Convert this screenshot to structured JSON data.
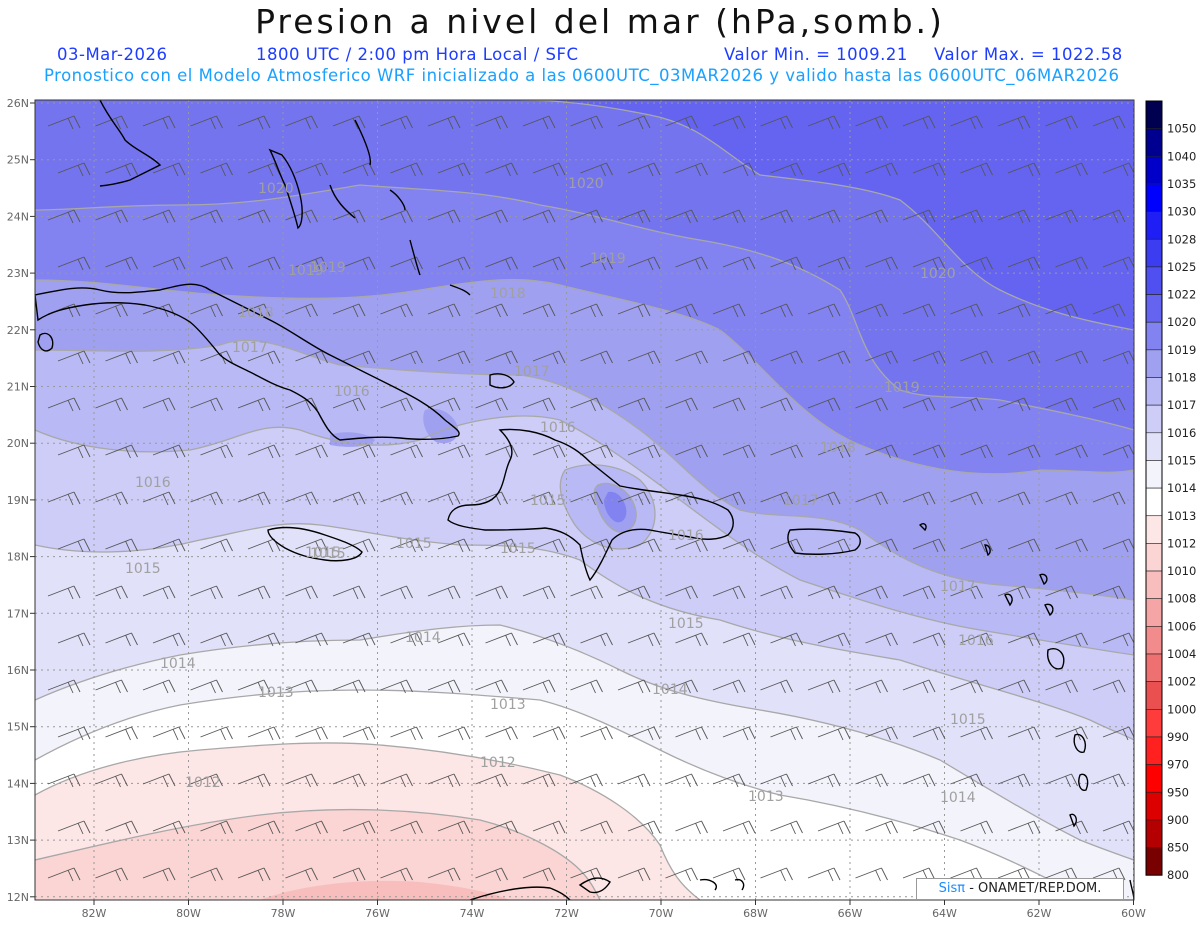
{
  "header": {
    "title": "Presion a nivel del mar (hPa,somb.)",
    "date": "03-Mar-2026",
    "time": "1800 UTC / 2:00 pm Hora Local / SFC",
    "min_value": "Valor Min. = 1009.21",
    "max_value": "Valor Max. = 1022.58",
    "forecast": "Pronostico con el Modelo Atmosferico WRF inicializado a las 0600UTC_03MAR2026 y valido hasta las  0600UTC_06MAR2026"
  },
  "map": {
    "lat_labels": [
      "26N",
      "25N",
      "24N",
      "23N",
      "22N",
      "21N",
      "20N",
      "19N",
      "18N",
      "17N",
      "16N",
      "15N",
      "14N",
      "13N",
      "12N"
    ],
    "lon_labels": [
      "82W",
      "80W",
      "78W",
      "76W",
      "74W",
      "72W",
      "70W",
      "68W",
      "66W",
      "64W",
      "62W",
      "60W"
    ],
    "contour_labels": [
      {
        "text": "1020"
      },
      {
        "text": "1020"
      },
      {
        "text": "1020"
      },
      {
        "text": "1019"
      },
      {
        "text": "1019"
      },
      {
        "text": "1019"
      },
      {
        "text": "1019"
      },
      {
        "text": "1018"
      },
      {
        "text": "1018"
      },
      {
        "text": "1018"
      },
      {
        "text": "1017"
      },
      {
        "text": "1017"
      },
      {
        "text": "1017"
      },
      {
        "text": "1017"
      },
      {
        "text": "1016"
      },
      {
        "text": "1016"
      },
      {
        "text": "1016"
      },
      {
        "text": "1016"
      },
      {
        "text": "1016"
      },
      {
        "text": "1015"
      },
      {
        "text": "1015"
      },
      {
        "text": "1015"
      },
      {
        "text": "1015"
      },
      {
        "text": "1015"
      },
      {
        "text": "1015"
      },
      {
        "text": "1015"
      },
      {
        "text": "1015"
      },
      {
        "text": "1014"
      },
      {
        "text": "1014"
      },
      {
        "text": "1014"
      },
      {
        "text": "1014"
      },
      {
        "text": "1013"
      },
      {
        "text": "1013"
      },
      {
        "text": "1013"
      },
      {
        "text": "1012"
      },
      {
        "text": "1012"
      }
    ]
  },
  "legend": {
    "entries": [
      {
        "label": "1050",
        "color": "#000050"
      },
      {
        "label": "1040",
        "color": "#000090"
      },
      {
        "label": "1035",
        "color": "#0000c8"
      },
      {
        "label": "1030",
        "color": "#0000ff"
      },
      {
        "label": "1028",
        "color": "#1e1ef5"
      },
      {
        "label": "1025",
        "color": "#3c3cf0"
      },
      {
        "label": "1022",
        "color": "#5050f0"
      },
      {
        "label": "1020",
        "color": "#6464f0"
      },
      {
        "label": "1019",
        "color": "#8282f0"
      },
      {
        "label": "1018",
        "color": "#a0a0f0"
      },
      {
        "label": "1017",
        "color": "#b9b9f5"
      },
      {
        "label": "1016",
        "color": "#cdcdf8"
      },
      {
        "label": "1015",
        "color": "#e1e1fa"
      },
      {
        "label": "1014",
        "color": "#f3f3fc"
      },
      {
        "label": "1013",
        "color": "#ffffff"
      },
      {
        "label": "1012",
        "color": "#fde6e6"
      },
      {
        "label": "1010",
        "color": "#fbd4d4"
      },
      {
        "label": "1008",
        "color": "#f8bebe"
      },
      {
        "label": "1006",
        "color": "#f5a5a5"
      },
      {
        "label": "1004",
        "color": "#f28c8c"
      },
      {
        "label": "1002",
        "color": "#ee7070"
      },
      {
        "label": "1000",
        "color": "#ea5050"
      },
      {
        "label": "990",
        "color": "#ff3c3c"
      },
      {
        "label": "970",
        "color": "#ff2020"
      },
      {
        "label": "950",
        "color": "#ff0000"
      },
      {
        "label": "900",
        "color": "#dc0000"
      },
      {
        "label": "850",
        "color": "#b40000"
      },
      {
        "label": "800",
        "color": "#780000"
      }
    ]
  },
  "credit": {
    "brand": "Sisπ",
    "org": "- ONAMET/REP.DOM."
  }
}
